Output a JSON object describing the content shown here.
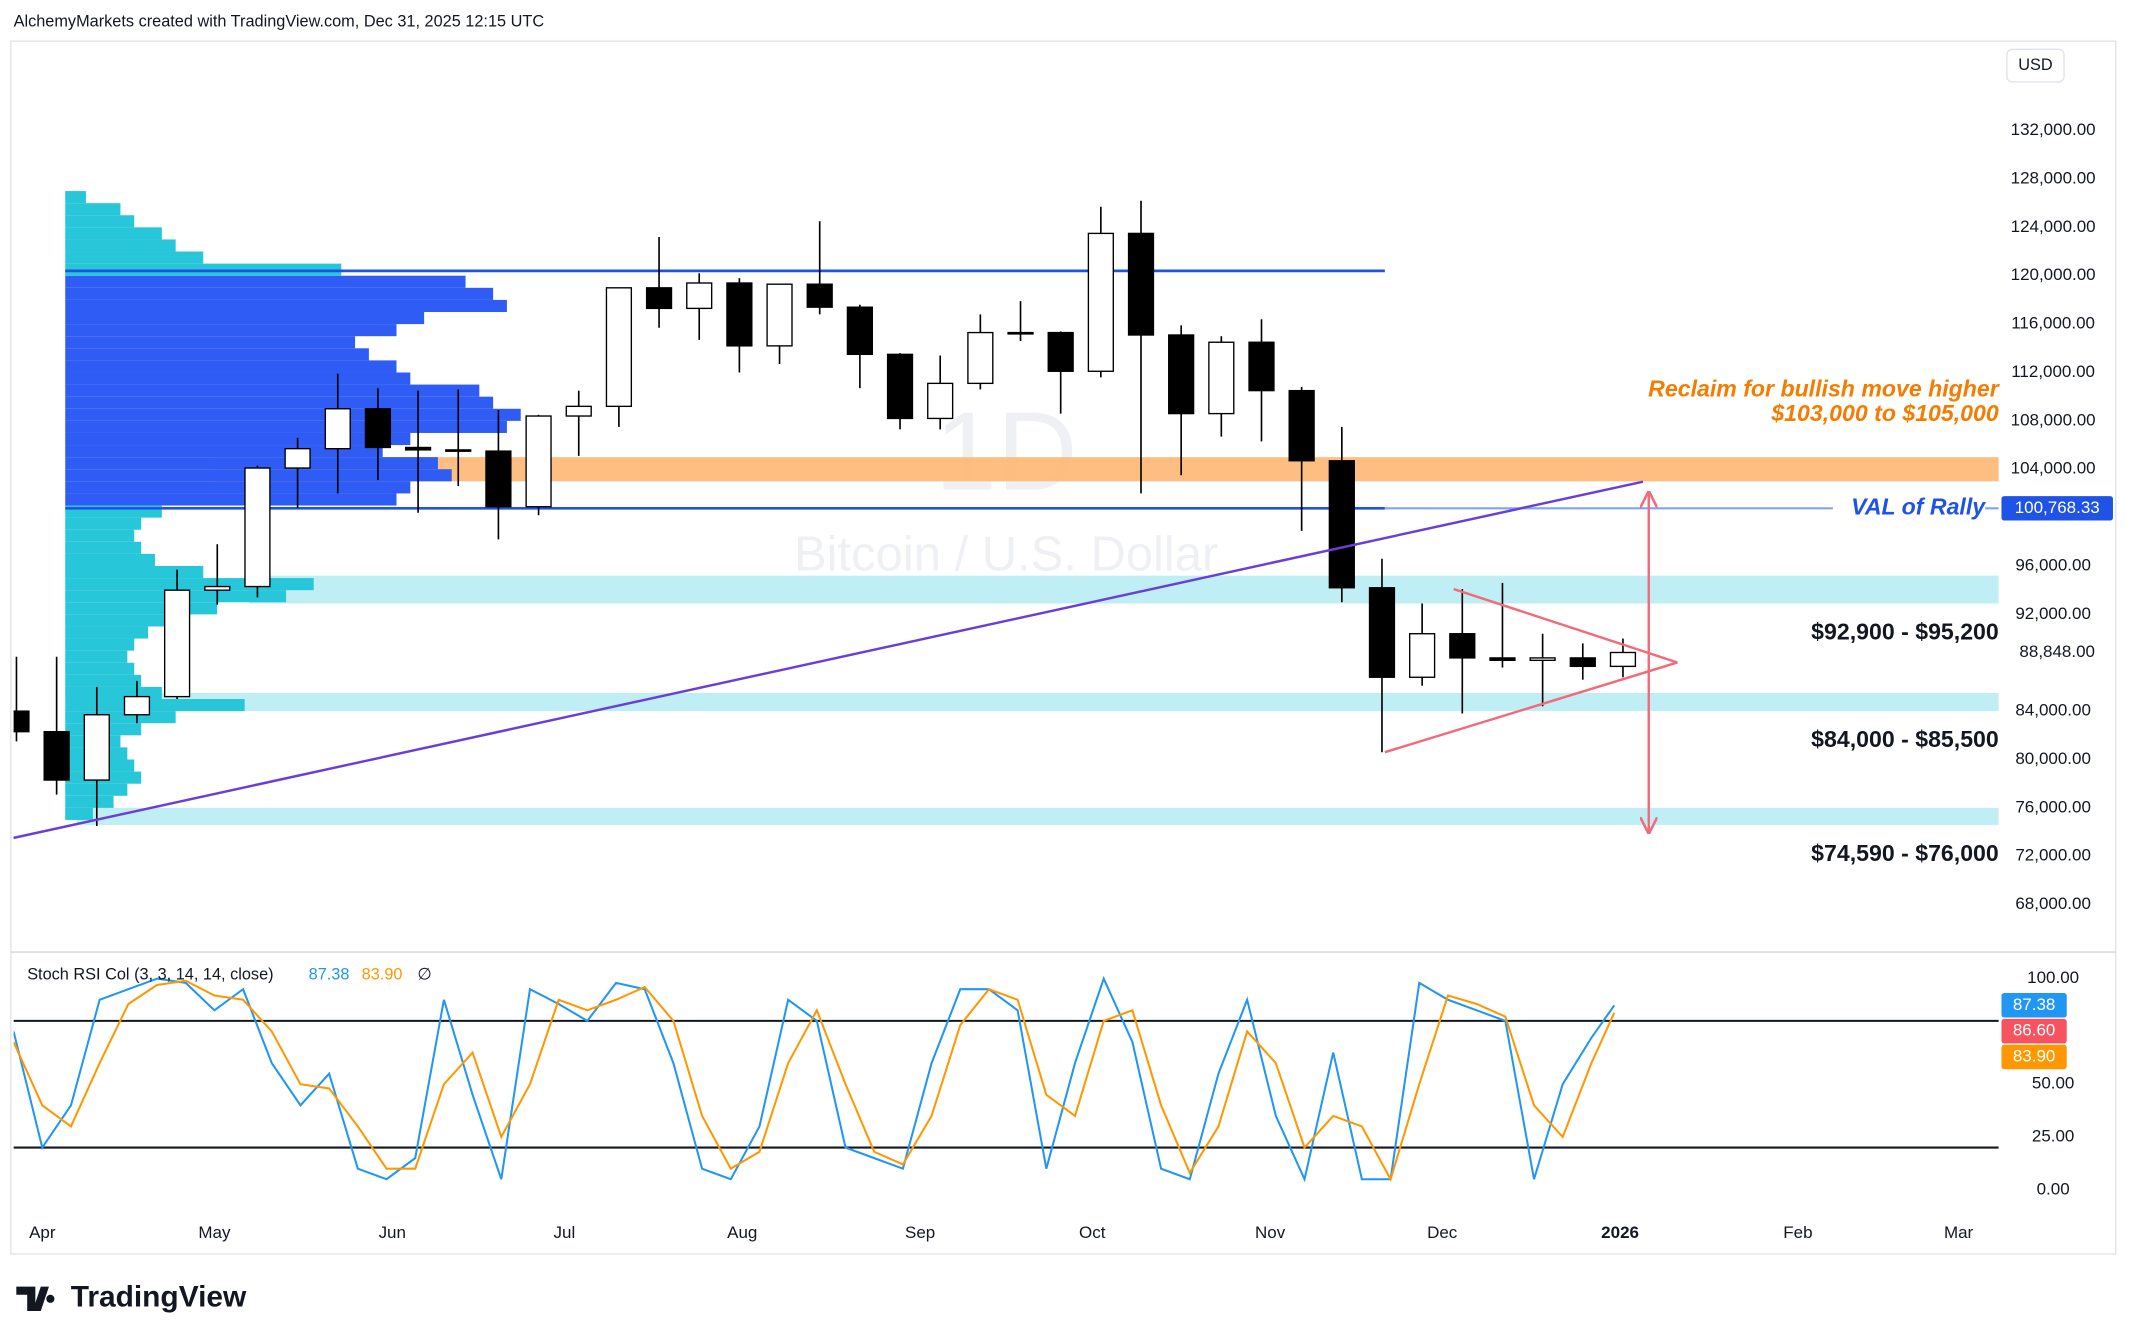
{
  "header": "AlchemyMarkets created with TradingView.com, Dec 31, 2025 12:15 UTC",
  "logo": "TradingView",
  "chart_data": [
    {
      "type": "candlestick",
      "currency": "USD",
      "watermark": [
        "1D",
        "Bitcoin / U.S. Dollar"
      ],
      "xlim": [
        "2025-03-27",
        "2026-03-08"
      ],
      "xticks": [
        {
          "value": "2025-04-01",
          "label": "Apr"
        },
        {
          "value": "2025-05-01",
          "label": "May"
        },
        {
          "value": "2025-06-01",
          "label": "Jun"
        },
        {
          "value": "2025-07-01",
          "label": "Jul"
        },
        {
          "value": "2025-08-01",
          "label": "Aug"
        },
        {
          "value": "2025-09-01",
          "label": "Sep"
        },
        {
          "value": "2025-10-01",
          "label": "Oct"
        },
        {
          "value": "2025-11-01",
          "label": "Nov"
        },
        {
          "value": "2025-12-01",
          "label": "Dec"
        },
        {
          "value": "2026-01-01",
          "label": "2026"
        },
        {
          "value": "2026-02-01",
          "label": "Feb"
        },
        {
          "value": "2026-03-01",
          "label": "Mar"
        }
      ],
      "ylim": [
        64300,
        139400
      ],
      "yticks": [
        {
          "value": 68000,
          "label": "68,000.00"
        },
        {
          "value": 72000,
          "label": "72,000.00"
        },
        {
          "value": 76000,
          "label": "76,000.00"
        },
        {
          "value": 80000,
          "label": "80,000.00"
        },
        {
          "value": 84000,
          "label": "84,000.00"
        },
        {
          "value": 92000,
          "label": "92,000.00"
        },
        {
          "value": 96000,
          "label": "96,000.00"
        },
        {
          "value": 104000,
          "label": "104,000.00"
        },
        {
          "value": 108000,
          "label": "108,000.00"
        },
        {
          "value": 112000,
          "label": "112,000.00"
        },
        {
          "value": 116000,
          "label": "116,000.00"
        },
        {
          "value": 120000,
          "label": "120,000.00"
        },
        {
          "value": 124000,
          "label": "124,000.00"
        },
        {
          "value": 128000,
          "label": "128,000.00"
        },
        {
          "value": 132000,
          "label": "132,000.00"
        }
      ],
      "up_color": "#ffffff",
      "down_color": "#000000",
      "x": [
        "2025-03-24",
        "2025-03-31",
        "2025-04-07",
        "2025-04-14",
        "2025-04-21",
        "2025-04-28",
        "2025-05-05",
        "2025-05-12",
        "2025-05-19",
        "2025-05-26",
        "2025-06-02",
        "2025-06-09",
        "2025-06-16",
        "2025-06-23",
        "2025-06-30",
        "2025-07-07",
        "2025-07-14",
        "2025-07-21",
        "2025-07-28",
        "2025-08-04",
        "2025-08-11",
        "2025-08-18",
        "2025-08-25",
        "2025-09-01",
        "2025-09-08",
        "2025-09-15",
        "2025-09-22",
        "2025-09-29",
        "2025-10-06",
        "2025-10-13",
        "2025-10-20",
        "2025-10-27",
        "2025-11-03",
        "2025-11-10",
        "2025-11-17",
        "2025-11-24",
        "2025-12-01",
        "2025-12-08",
        "2025-12-15",
        "2025-12-22",
        "2025-12-29"
      ],
      "open": [
        84000,
        82300,
        78300,
        83700,
        85200,
        94000,
        94300,
        104100,
        105700,
        109000,
        105800,
        105600,
        105500,
        100900,
        108400,
        109200,
        119000,
        117300,
        119400,
        114200,
        119300,
        117400,
        113500,
        108200,
        111100,
        115300,
        115300,
        112100,
        123500,
        115100,
        108600,
        114500,
        110500,
        104700,
        94200,
        86800,
        90400,
        88400,
        88200,
        88400,
        87700
      ],
      "high": [
        88500,
        88500,
        86000,
        86500,
        95700,
        97800,
        104300,
        106600,
        111900,
        110700,
        110500,
        110600,
        108900,
        108500,
        110500,
        119000,
        123200,
        120200,
        119800,
        119300,
        124500,
        117600,
        113600,
        113400,
        116800,
        117900,
        115400,
        125700,
        126200,
        115900,
        115000,
        116400,
        110800,
        107500,
        96600,
        92900,
        94100,
        94600,
        90400,
        89600,
        90000
      ],
      "low": [
        81500,
        77100,
        74500,
        83000,
        85000,
        92800,
        93400,
        100800,
        102000,
        103100,
        100400,
        102600,
        98200,
        100200,
        105100,
        107500,
        115700,
        114700,
        112000,
        112700,
        116800,
        110700,
        107300,
        107300,
        110600,
        114600,
        108600,
        111600,
        102000,
        103500,
        106700,
        106300,
        98900,
        93000,
        80600,
        86100,
        83800,
        87600,
        84400,
        86600,
        86800
      ],
      "close": [
        82300,
        78300,
        83700,
        85200,
        94000,
        94300,
        104100,
        105700,
        109000,
        105800,
        105600,
        105500,
        100900,
        108400,
        109200,
        119000,
        117300,
        119400,
        114200,
        119300,
        117400,
        113500,
        108200,
        111100,
        115300,
        115300,
        112100,
        123500,
        115100,
        108600,
        114500,
        110500,
        104700,
        94200,
        86800,
        90400,
        88400,
        88200,
        88400,
        87700,
        88848
      ],
      "levels": [
        {
          "price": 120400,
          "start": "2025-04-05",
          "end": "2025-11-21",
          "color": "#1e53e5"
        },
        {
          "price": 100768.33,
          "start": "2025-04-05",
          "end": "2025-11-21",
          "color": "#1e53e5",
          "extension_color": "#7fa3f5"
        }
      ],
      "zones": [
        {
          "low": 103000,
          "high": 105000,
          "start": "2025-05-01",
          "color": "#ffb36b"
        },
        {
          "low": 92900,
          "high": 95200,
          "start": "2025-05-07",
          "color": "#b5ebf3",
          "label": "$92,900 - $95,200"
        },
        {
          "low": 84000,
          "high": 85500,
          "start": "2025-04-07",
          "color": "#b5ebf3",
          "label": "$84,000 - $85,500"
        },
        {
          "low": 74590,
          "high": 76000,
          "start": "2025-04-07",
          "color": "#b5ebf3",
          "label": "$74,590 - $76,000"
        }
      ],
      "annotations": [
        {
          "text": "Reclaim for bullish move higher",
          "color": "#f57c00"
        },
        {
          "text": "$103,000 to $105,000",
          "color": "#f57c00"
        },
        {
          "text": "VAL of Rally",
          "color": "#1e53e5"
        }
      ],
      "price_badges": [
        {
          "value": 100768.33,
          "label": "100,768.33",
          "color": "#1e53e5",
          "text_color": "#ffffff"
        },
        {
          "value": 88848,
          "label": "88,848.00",
          "color": "#ffffff",
          "text_color": "#131722"
        }
      ],
      "volume_profile": {
        "start": "2025-04-05",
        "inside_color": "#2f5cf5",
        "outside_color": "#27c6d8",
        "bins": [
          75000,
          76000,
          77000,
          78000,
          79000,
          80000,
          81000,
          82000,
          83000,
          84000,
          85000,
          86000,
          87000,
          88000,
          89000,
          90000,
          91000,
          92000,
          93000,
          94000,
          95000,
          96000,
          97000,
          98000,
          99000,
          100000,
          101000,
          102000,
          103000,
          104000,
          105000,
          106000,
          107000,
          108000,
          109000,
          110000,
          111000,
          112000,
          113000,
          114000,
          115000,
          116000,
          117000,
          118000,
          119000,
          120000,
          121000,
          122000,
          123000,
          124000,
          125000,
          126000,
          127000
        ],
        "values": [
          20,
          35,
          45,
          55,
          50,
          45,
          40,
          55,
          80,
          130,
          70,
          55,
          50,
          45,
          50,
          60,
          75,
          110,
          160,
          180,
          100,
          65,
          55,
          50,
          55,
          70,
          240,
          250,
          280,
          270,
          230,
          250,
          320,
          330,
          310,
          300,
          250,
          240,
          220,
          210,
          240,
          260,
          320,
          310,
          290,
          200,
          100,
          80,
          70,
          50,
          40,
          15
        ]
      },
      "drawings": [
        {
          "color": "#6a3fd6",
          "arrow": false,
          "points": [
            {
              "date": "2025-03-27",
              "price": 73520
            },
            {
              "date": "2026-01-05",
              "price": 102975
            }
          ]
        },
        {
          "color": "#f26b7a",
          "arrow": false,
          "points": [
            {
              "date": "2025-12-03",
              "price": 94093
            },
            {
              "date": "2026-01-11",
              "price": 88022
            }
          ]
        },
        {
          "color": "#f26b7a",
          "arrow": false,
          "points": [
            {
              "date": "2025-11-21",
              "price": 80602
            },
            {
              "date": "2026-01-11",
              "price": 88022
            }
          ]
        },
        {
          "color": "#f26b7a",
          "arrow": true,
          "points": [
            {
              "date": "2026-01-06",
              "price": 102076
            },
            {
              "date": "2026-01-06",
              "price": 73970
            }
          ]
        }
      ]
    },
    {
      "type": "line",
      "title": "Stoch RSI Col (3, 3, 14, 14, close)",
      "legend_labels": [
        "87.38",
        "83.90"
      ],
      "empty_mark": "∅",
      "ylim": [
        -13,
        110
      ],
      "yticks": [
        {
          "value": 0,
          "label": "0.00"
        },
        {
          "value": 25,
          "label": "25.00"
        },
        {
          "value": 50,
          "label": "50.00"
        },
        {
          "value": 100,
          "label": "100.00"
        }
      ],
      "bands": [
        20,
        80
      ],
      "badges": [
        {
          "value": 87.38,
          "label": "87.38",
          "color": "#2196f3"
        },
        {
          "value": 86.6,
          "label": "86.60",
          "color": "#f7525f"
        },
        {
          "value": 83.9,
          "label": "83.90",
          "color": "#ff9800"
        }
      ],
      "x": [
        "2025-03-27",
        "2025-04-01",
        "2025-04-06",
        "2025-04-11",
        "2025-04-16",
        "2025-04-21",
        "2025-04-26",
        "2025-05-01",
        "2025-05-06",
        "2025-05-11",
        "2025-05-16",
        "2025-05-21",
        "2025-05-26",
        "2025-05-31",
        "2025-06-05",
        "2025-06-10",
        "2025-06-15",
        "2025-06-20",
        "2025-06-25",
        "2025-06-30",
        "2025-07-05",
        "2025-07-10",
        "2025-07-15",
        "2025-07-20",
        "2025-07-25",
        "2025-07-30",
        "2025-08-04",
        "2025-08-09",
        "2025-08-14",
        "2025-08-19",
        "2025-08-24",
        "2025-08-29",
        "2025-09-03",
        "2025-09-08",
        "2025-09-13",
        "2025-09-18",
        "2025-09-23",
        "2025-09-28",
        "2025-10-03",
        "2025-10-08",
        "2025-10-13",
        "2025-10-18",
        "2025-10-23",
        "2025-10-28",
        "2025-11-02",
        "2025-11-07",
        "2025-11-12",
        "2025-11-17",
        "2025-11-22",
        "2025-11-27",
        "2025-12-02",
        "2025-12-07",
        "2025-12-12",
        "2025-12-17",
        "2025-12-22",
        "2025-12-27",
        "2025-12-31"
      ],
      "series": [
        {
          "color": "#2196f3",
          "values": [
            75,
            20,
            40,
            90,
            95,
            100,
            98,
            85,
            95,
            60,
            40,
            55,
            10,
            5,
            15,
            90,
            45,
            5,
            95,
            88,
            80,
            98,
            95,
            60,
            10,
            5,
            30,
            90,
            80,
            20,
            15,
            10,
            60,
            95,
            95,
            85,
            10,
            60,
            100,
            70,
            10,
            5,
            55,
            90,
            35,
            5,
            65,
            5,
            5,
            98,
            90,
            85,
            80,
            5,
            50,
            72,
            87.38
          ]
        },
        {
          "color": "#ff9800",
          "values": [
            70,
            40,
            30,
            60,
            88,
            97,
            99,
            92,
            90,
            75,
            50,
            48,
            30,
            10,
            10,
            50,
            65,
            25,
            50,
            90,
            85,
            90,
            96,
            80,
            35,
            10,
            18,
            60,
            85,
            50,
            18,
            12,
            35,
            78,
            95,
            90,
            45,
            35,
            80,
            85,
            40,
            8,
            30,
            75,
            60,
            20,
            35,
            30,
            5,
            50,
            92,
            88,
            82,
            40,
            25,
            60,
            83.9
          ]
        }
      ]
    }
  ]
}
